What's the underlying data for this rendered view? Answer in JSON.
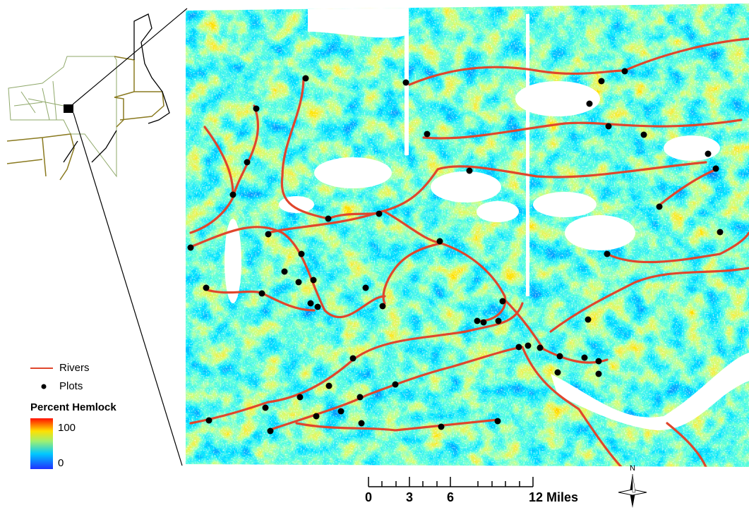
{
  "legend": {
    "items": [
      {
        "label": "Rivers"
      },
      {
        "label": "Plots"
      }
    ],
    "title": "Percent Hemlock",
    "max_label": "100",
    "min_label": "0"
  },
  "scale_bar": {
    "labels": [
      "0",
      "3",
      "6",
      "12 Miles"
    ]
  },
  "compass": {
    "label": "N"
  }
}
